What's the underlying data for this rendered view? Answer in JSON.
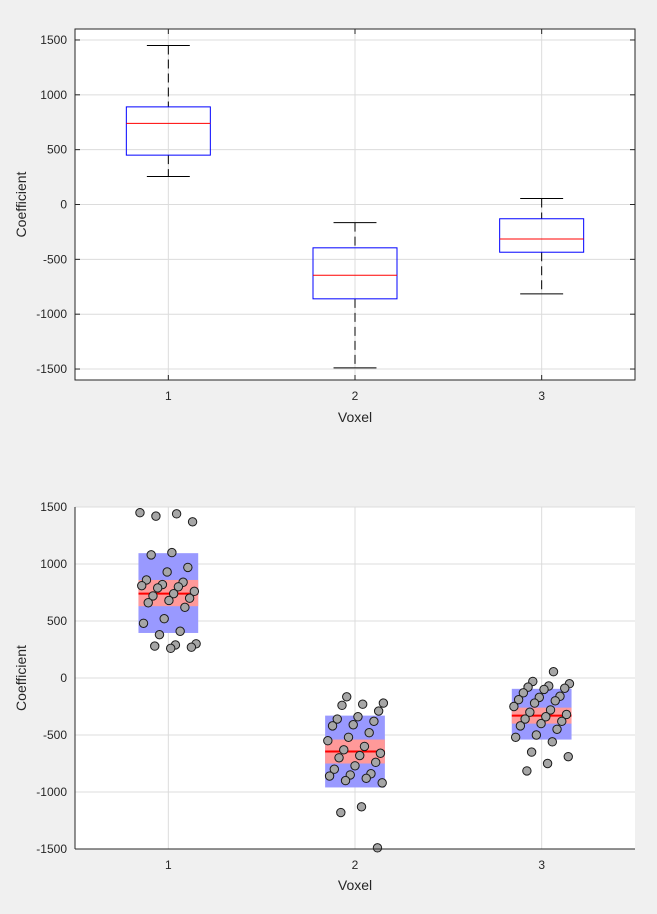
{
  "chart_data": [
    {
      "type": "box",
      "xlabel": "Voxel",
      "ylabel": "Coefficient",
      "categories": [
        "1",
        "2",
        "3"
      ],
      "ylim": [
        -1600,
        1600
      ],
      "yticks": [
        -1500,
        -1000,
        -500,
        0,
        500,
        1000,
        1500
      ],
      "grid": true,
      "boxes": [
        {
          "category": "1",
          "whisker_low": 255,
          "q1": 450,
          "median": 740,
          "q3": 890,
          "whisker_high": 1450
        },
        {
          "category": "2",
          "whisker_low": -1490,
          "q1": -860,
          "median": -645,
          "q3": -395,
          "whisker_high": -165
        },
        {
          "category": "3",
          "whisker_low": -815,
          "q1": -435,
          "median": -315,
          "q3": -130,
          "whisker_high": 55
        }
      ],
      "colors": {
        "box": "#0000ff",
        "median": "#ff0000",
        "whisker": "#000000"
      }
    },
    {
      "type": "scatter",
      "xlabel": "Voxel",
      "ylabel": "Coefficient",
      "categories": [
        "1",
        "2",
        "3"
      ],
      "xlim": [
        0.5,
        3.5
      ],
      "ylim": [
        -1500,
        1500
      ],
      "yticks": [
        -1500,
        -1000,
        -500,
        0,
        500,
        1000,
        1500
      ],
      "grid": true,
      "groups": [
        {
          "category": "1",
          "mean": 740,
          "ci_low": 630,
          "ci_high": 860,
          "sd_low": 395,
          "sd_high": 1095,
          "points": [
            1450,
            1440,
            1420,
            1370,
            1100,
            1080,
            970,
            930,
            860,
            840,
            820,
            810,
            800,
            790,
            760,
            740,
            720,
            700,
            680,
            660,
            620,
            520,
            480,
            410,
            380,
            300,
            290,
            280,
            270,
            260
          ]
        },
        {
          "category": "2",
          "mean": -645,
          "ci_low": -750,
          "ci_high": -540,
          "sd_low": -960,
          "sd_high": -330,
          "points": [
            -165,
            -220,
            -230,
            -240,
            -290,
            -340,
            -360,
            -380,
            -410,
            -420,
            -480,
            -520,
            -550,
            -600,
            -630,
            -660,
            -680,
            -700,
            -740,
            -770,
            -800,
            -840,
            -850,
            -860,
            -880,
            -900,
            -920,
            -1130,
            -1180,
            -1490
          ]
        },
        {
          "category": "3",
          "mean": -330,
          "ci_low": -400,
          "ci_high": -260,
          "sd_low": -540,
          "sd_high": -95,
          "points": [
            55,
            -30,
            -50,
            -70,
            -80,
            -90,
            -100,
            -130,
            -160,
            -170,
            -190,
            -200,
            -220,
            -250,
            -280,
            -300,
            -320,
            -340,
            -360,
            -380,
            -400,
            -420,
            -450,
            -500,
            -520,
            -560,
            -650,
            -690,
            -750,
            -815
          ]
        }
      ],
      "colors": {
        "sd": "#9999ff",
        "ci": "#ff9999",
        "mean": "#ff0000",
        "point": "#a6a6a6"
      }
    }
  ]
}
